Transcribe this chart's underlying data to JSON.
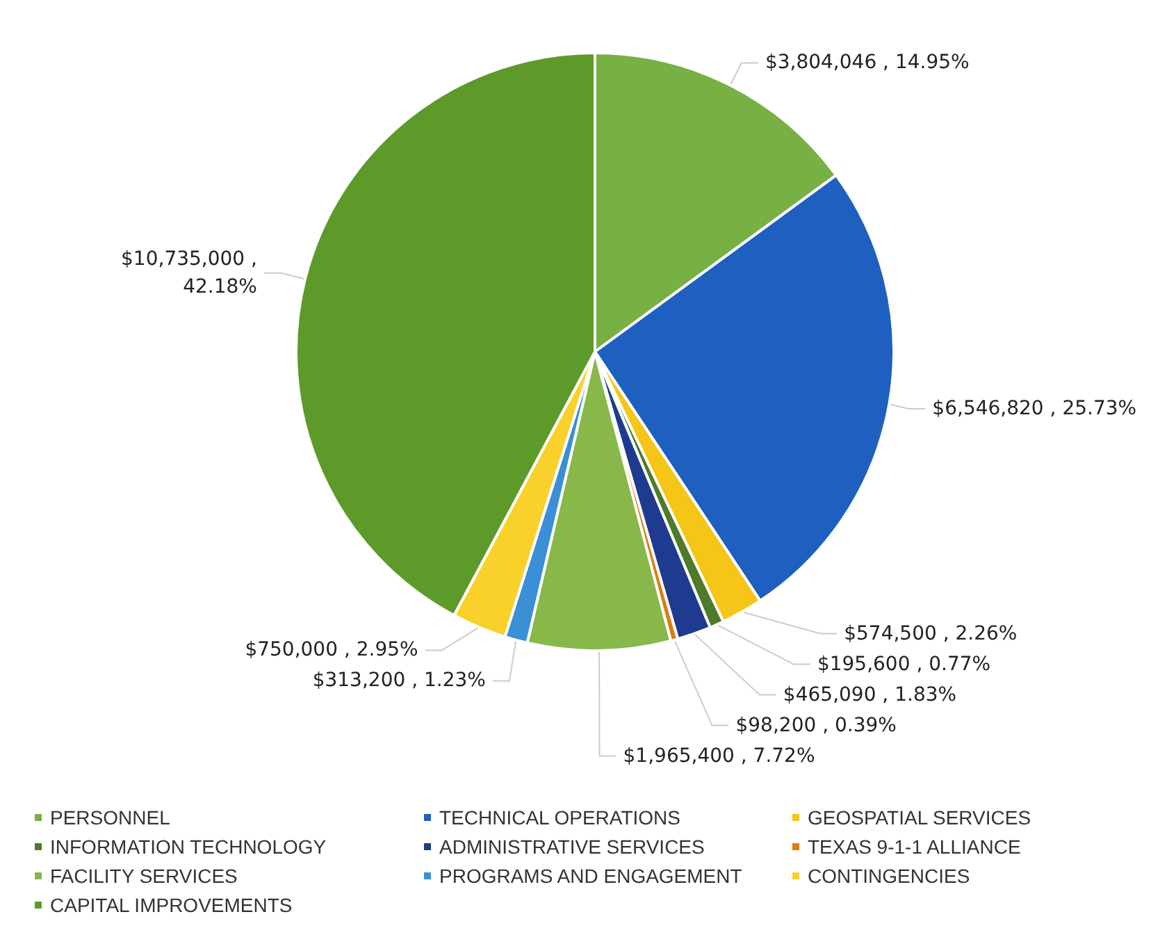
{
  "chart_data": {
    "type": "pie",
    "categories": [
      "PERSONNEL",
      "TECHNICAL OPERATIONS",
      "GEOSPATIAL SERVICES",
      "INFORMATION TECHNOLOGY",
      "ADMINISTRATIVE SERVICES",
      "TEXAS 9-1-1 ALLIANCE",
      "FACILITY SERVICES",
      "PROGRAMS AND ENGAGEMENT",
      "CONTINGENCIES",
      "CAPITAL IMPROVEMENTS"
    ],
    "values": [
      3804046,
      6546820,
      574500,
      195600,
      465090,
      98200,
      1965400,
      313200,
      750000,
      10735000
    ],
    "value_labels": [
      "$3,804,046 , 14.95%",
      "$6,546,820 , 25.73%",
      "$574,500 , 2.26%",
      "$195,600 , 0.77%",
      "$465,090 , 1.83%",
      "$98,200 , 0.39%",
      "$1,965,400 , 7.72%",
      "$313,200 , 1.23%",
      "$750,000 , 2.95%",
      "$10,735,000 ,\n42.18%"
    ],
    "colors": [
      "#77b043",
      "#1f5fbf",
      "#f5c518",
      "#4e7a2a",
      "#1f3b8f",
      "#e07b10",
      "#88b84a",
      "#3a8fd6",
      "#f8d12a",
      "#5d9a2a"
    ],
    "legend": "bottom"
  }
}
